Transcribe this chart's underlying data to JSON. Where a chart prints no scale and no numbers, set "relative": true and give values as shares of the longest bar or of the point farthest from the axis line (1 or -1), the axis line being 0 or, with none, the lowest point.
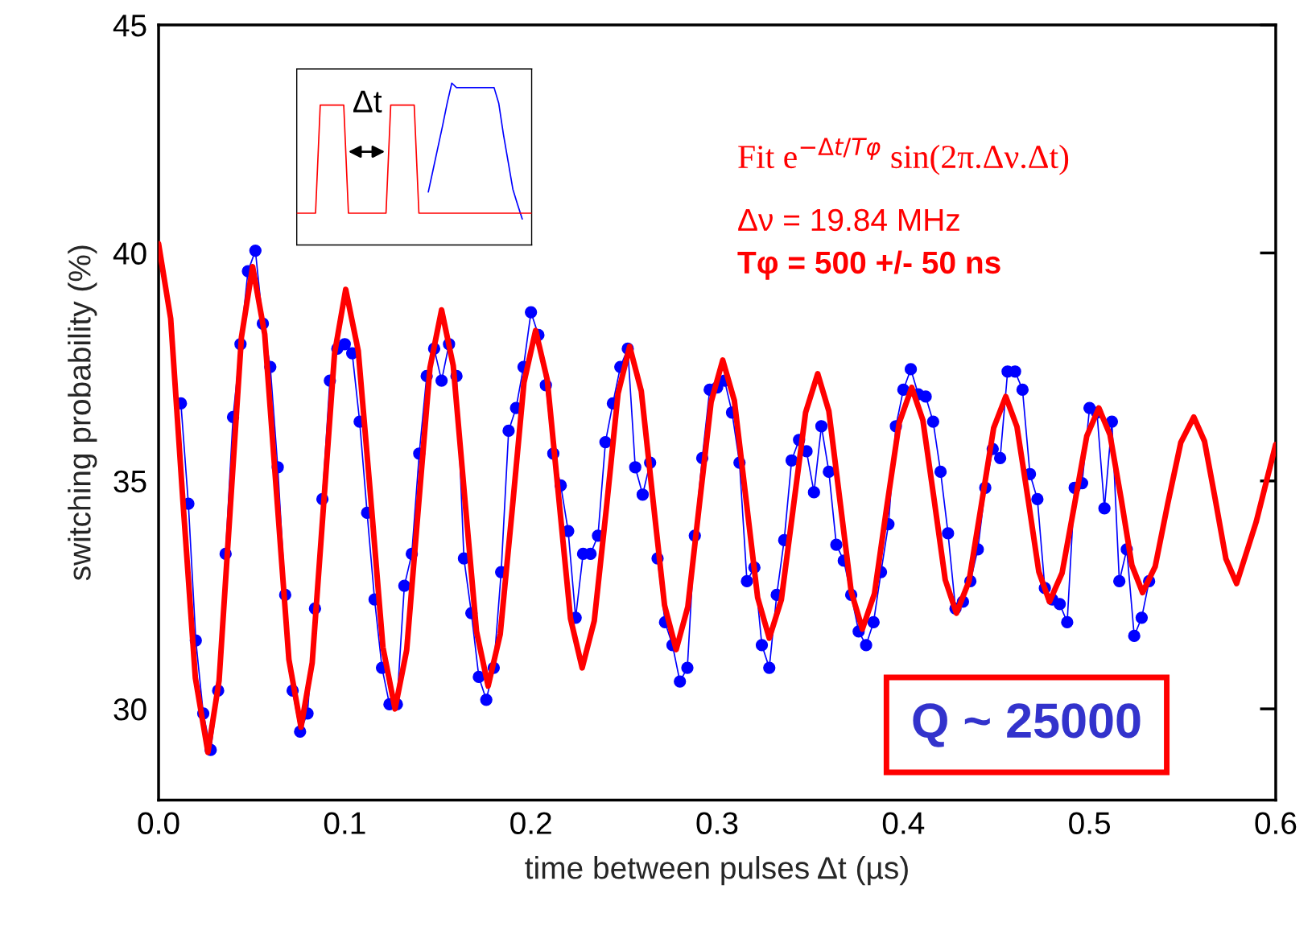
{
  "chart_data": [
    {
      "type": "line",
      "xlabel": "time between pulses Δt (µs)",
      "ylabel": "switching probability (%)",
      "xlim": [
        0,
        0.6
      ],
      "ylim": [
        28,
        45
      ],
      "xticks": [
        {
          "value": 0,
          "label": "0.0"
        },
        {
          "value": 0.1,
          "label": "0.1"
        },
        {
          "value": 0.2,
          "label": "0.2"
        },
        {
          "value": 0.3,
          "label": "0.3"
        },
        {
          "value": 0.4,
          "label": "0.4"
        },
        {
          "value": 0.5,
          "label": "0.5"
        },
        {
          "value": 0.6,
          "label": "0.6"
        }
      ],
      "yticks": [
        30,
        35,
        40,
        45
      ],
      "grid": false,
      "annotations": [
        "Fit e$^{−Δt/Tφ}$ sin(2π.Δν.Δt)",
        "Δν = 19.84 MHz",
        "Tφ = 500 +/- 50 ns",
        "Q ~ 25000"
      ],
      "series": [
        {
          "color": "#0000ff",
          "marker": "circle",
          "line_style": "solid",
          "x": [
            0.012,
            0.016,
            0.02,
            0.024,
            0.028,
            0.032,
            0.036,
            0.04,
            0.044,
            0.048,
            0.052,
            0.056,
            0.06,
            0.064,
            0.068,
            0.072,
            0.076,
            0.08,
            0.084,
            0.088,
            0.092,
            0.096,
            0.1,
            0.104,
            0.108,
            0.112,
            0.116,
            0.12,
            0.124,
            0.128,
            0.132,
            0.136,
            0.14,
            0.144,
            0.148,
            0.152,
            0.156,
            0.16,
            0.164,
            0.168,
            0.172,
            0.176,
            0.18,
            0.184,
            0.188,
            0.192,
            0.196,
            0.2,
            0.204,
            0.208,
            0.212,
            0.216,
            0.22,
            0.224,
            0.228,
            0.232,
            0.236,
            0.24,
            0.244,
            0.248,
            0.252,
            0.256,
            0.26,
            0.264,
            0.268,
            0.272,
            0.276,
            0.28,
            0.284,
            0.288,
            0.292,
            0.296,
            0.3,
            0.304,
            0.308,
            0.312,
            0.316,
            0.32,
            0.324,
            0.328,
            0.332,
            0.336,
            0.34,
            0.344,
            0.348,
            0.352,
            0.356,
            0.36,
            0.364,
            0.368,
            0.372,
            0.376,
            0.38,
            0.384,
            0.388,
            0.392,
            0.396,
            0.4,
            0.404,
            0.408,
            0.412,
            0.416,
            0.42,
            0.424,
            0.428,
            0.432,
            0.436,
            0.44,
            0.444,
            0.448,
            0.452,
            0.456,
            0.46,
            0.464,
            0.468,
            0.472,
            0.476,
            0.48,
            0.484,
            0.488,
            0.492,
            0.496,
            0.5,
            0.504,
            0.508,
            0.512,
            0.516,
            0.52,
            0.524,
            0.528,
            0.532
          ],
          "values": [
            36.7,
            34.5,
            31.5,
            29.9,
            29.1,
            30.4,
            33.4,
            36.4,
            38.0,
            39.6,
            40.05,
            38.45,
            37.5,
            35.3,
            32.5,
            30.4,
            29.5,
            29.9,
            32.2,
            34.6,
            37.2,
            37.9,
            38.0,
            37.8,
            36.3,
            34.3,
            32.4,
            30.9,
            30.1,
            30.1,
            32.7,
            33.4,
            35.6,
            37.3,
            37.9,
            37.2,
            38.0,
            37.3,
            33.3,
            32.1,
            30.7,
            30.2,
            30.9,
            33.0,
            36.1,
            36.6,
            37.5,
            38.7,
            38.2,
            37.1,
            35.6,
            34.9,
            33.9,
            32.0,
            33.4,
            33.4,
            33.8,
            35.85,
            36.7,
            37.5,
            37.9,
            35.3,
            34.7,
            35.4,
            33.3,
            31.9,
            31.4,
            30.6,
            30.9,
            33.8,
            35.5,
            37.0,
            37.05,
            37.2,
            36.5,
            35.4,
            32.8,
            33.1,
            31.4,
            30.9,
            32.5,
            33.7,
            35.45,
            35.9,
            35.65,
            34.75,
            36.2,
            35.2,
            33.6,
            33.25,
            32.5,
            31.7,
            31.4,
            31.9,
            33.0,
            34.05,
            36.2,
            37.0,
            37.45,
            36.9,
            36.85,
            36.3,
            35.2,
            33.85,
            32.2,
            32.35,
            32.8,
            33.5,
            34.85,
            35.7,
            35.5,
            37.4,
            37.4,
            37.0,
            35.15,
            34.6,
            32.65,
            32.4,
            32.3,
            31.9,
            34.85,
            34.95,
            36.6,
            36.5,
            34.4,
            36.3,
            32.8,
            33.5,
            31.6,
            32.0,
            32.8
          ]
        },
        {
          "color": "#ff0000",
          "marker": "none",
          "line_style": "solid",
          "x": [
            0,
            0.0065,
            0.013,
            0.01975,
            0.0265,
            0.0325,
            0.0385,
            0.0445,
            0.0505,
            0.057,
            0.0635,
            0.07,
            0.0765,
            0.0825,
            0.0885,
            0.0945,
            0.1005,
            0.10725,
            0.114,
            0.1205,
            0.127,
            0.13325,
            0.1395,
            0.14575,
            0.152,
            0.15825,
            0.1645,
            0.17075,
            0.177,
            0.1835,
            0.19,
            0.19625,
            0.2025,
            0.20875,
            0.215,
            0.22125,
            0.2275,
            0.234,
            0.2405,
            0.24675,
            0.253,
            0.25925,
            0.2655,
            0.27175,
            0.278,
            0.28425,
            0.2905,
            0.29675,
            0.303,
            0.30925,
            0.3155,
            0.32175,
            0.328,
            0.3345,
            0.341,
            0.3475,
            0.354,
            0.36,
            0.366,
            0.372,
            0.378,
            0.3845,
            0.391,
            0.39775,
            0.4045,
            0.4105,
            0.4165,
            0.4225,
            0.4285,
            0.43525,
            0.442,
            0.4485,
            0.455,
            0.461,
            0.467,
            0.47275,
            0.4785,
            0.48525,
            0.492,
            0.4985,
            0.505,
            0.511,
            0.517,
            0.52275,
            0.5285,
            0.53525,
            0.542,
            0.549,
            0.556,
            0.56175,
            0.5675,
            0.57325,
            0.579,
            0.5895,
            0.6
          ],
          "values": [
            40.2,
            38.56,
            34.6,
            30.68,
            29.05,
            30.62,
            34.4,
            38.15,
            39.7,
            38.22,
            34.65,
            31.08,
            29.6,
            31.01,
            34.4,
            37.79,
            39.2,
            37.85,
            34.6,
            31.35,
            30.0,
            31.29,
            34.4,
            37.48,
            38.75,
            37.53,
            34.6,
            31.7,
            30.5,
            31.64,
            34.4,
            37.16,
            38.3,
            37.22,
            34.6,
            31.98,
            30.9,
            31.93,
            34.4,
            36.91,
            37.95,
            36.97,
            34.6,
            32.27,
            31.3,
            32.24,
            34.5,
            36.73,
            37.65,
            36.76,
            34.6,
            32.44,
            31.55,
            32.4,
            34.45,
            36.5,
            37.35,
            36.53,
            34.55,
            32.57,
            31.75,
            32.53,
            34.4,
            36.27,
            37.05,
            36.33,
            34.6,
            32.83,
            32.1,
            32.8,
            34.5,
            36.16,
            36.85,
            36.19,
            34.6,
            33.01,
            32.35,
            32.98,
            34.5,
            35.98,
            36.6,
            36.01,
            34.6,
            33.15,
            32.55,
            33.12,
            34.5,
            35.84,
            36.4,
            35.87,
            34.6,
            33.29,
            32.75,
            34.1,
            35.8
          ]
        }
      ]
    },
    {
      "type": "line",
      "relative": true,
      "categories": [
        null,
        null,
        null,
        null,
        null,
        null,
        null,
        null,
        null,
        null,
        null,
        null,
        null,
        null,
        null,
        null,
        null,
        null,
        null,
        null,
        null,
        null,
        null,
        null,
        null,
        null,
        null,
        null,
        null,
        null,
        null,
        null,
        null,
        null,
        null,
        null,
        null,
        null,
        null,
        null,
        null,
        null,
        null,
        null,
        null,
        null,
        null,
        null,
        null,
        null,
        null
      ],
      "annotations": [
        "Δt"
      ],
      "series": [
        {
          "color": "#0000ff",
          "values": [
            null,
            null,
            null,
            null,
            null,
            null,
            null,
            null,
            null,
            null,
            null,
            null,
            null,
            null,
            null,
            null,
            null,
            null,
            null,
            null,
            null,
            null,
            null,
            null,
            null,
            null,
            null,
            null,
            0.327,
            0.462,
            0.597,
            0.731,
            0.874,
            1.0,
            0.972,
            0.972,
            0.972,
            0.972,
            0.972,
            0.972,
            0.972,
            0.972,
            0.972,
            0.874,
            0.681,
            0.513,
            0.344,
            0.25,
            0.16,
            null,
            null
          ]
        },
        {
          "color": "#ff0000",
          "values": [
            0.196,
            0.196,
            0.196,
            0.196,
            0.196,
            0.864,
            0.864,
            0.864,
            0.864,
            0.864,
            0.864,
            0.196,
            0.196,
            0.196,
            0.196,
            0.196,
            0.196,
            0.196,
            0.196,
            0.196,
            0.864,
            0.864,
            0.864,
            0.864,
            0.864,
            0.864,
            0.196,
            0.196,
            0.196,
            0.196,
            0.196,
            0.196,
            0.196,
            0.196,
            0.196,
            0.196,
            0.196,
            0.196,
            0.196,
            0.196,
            0.196,
            0.196,
            0.196,
            0.196,
            0.196,
            0.196,
            0.196,
            0.196,
            0.196,
            0.196,
            0.196
          ]
        }
      ]
    }
  ]
}
